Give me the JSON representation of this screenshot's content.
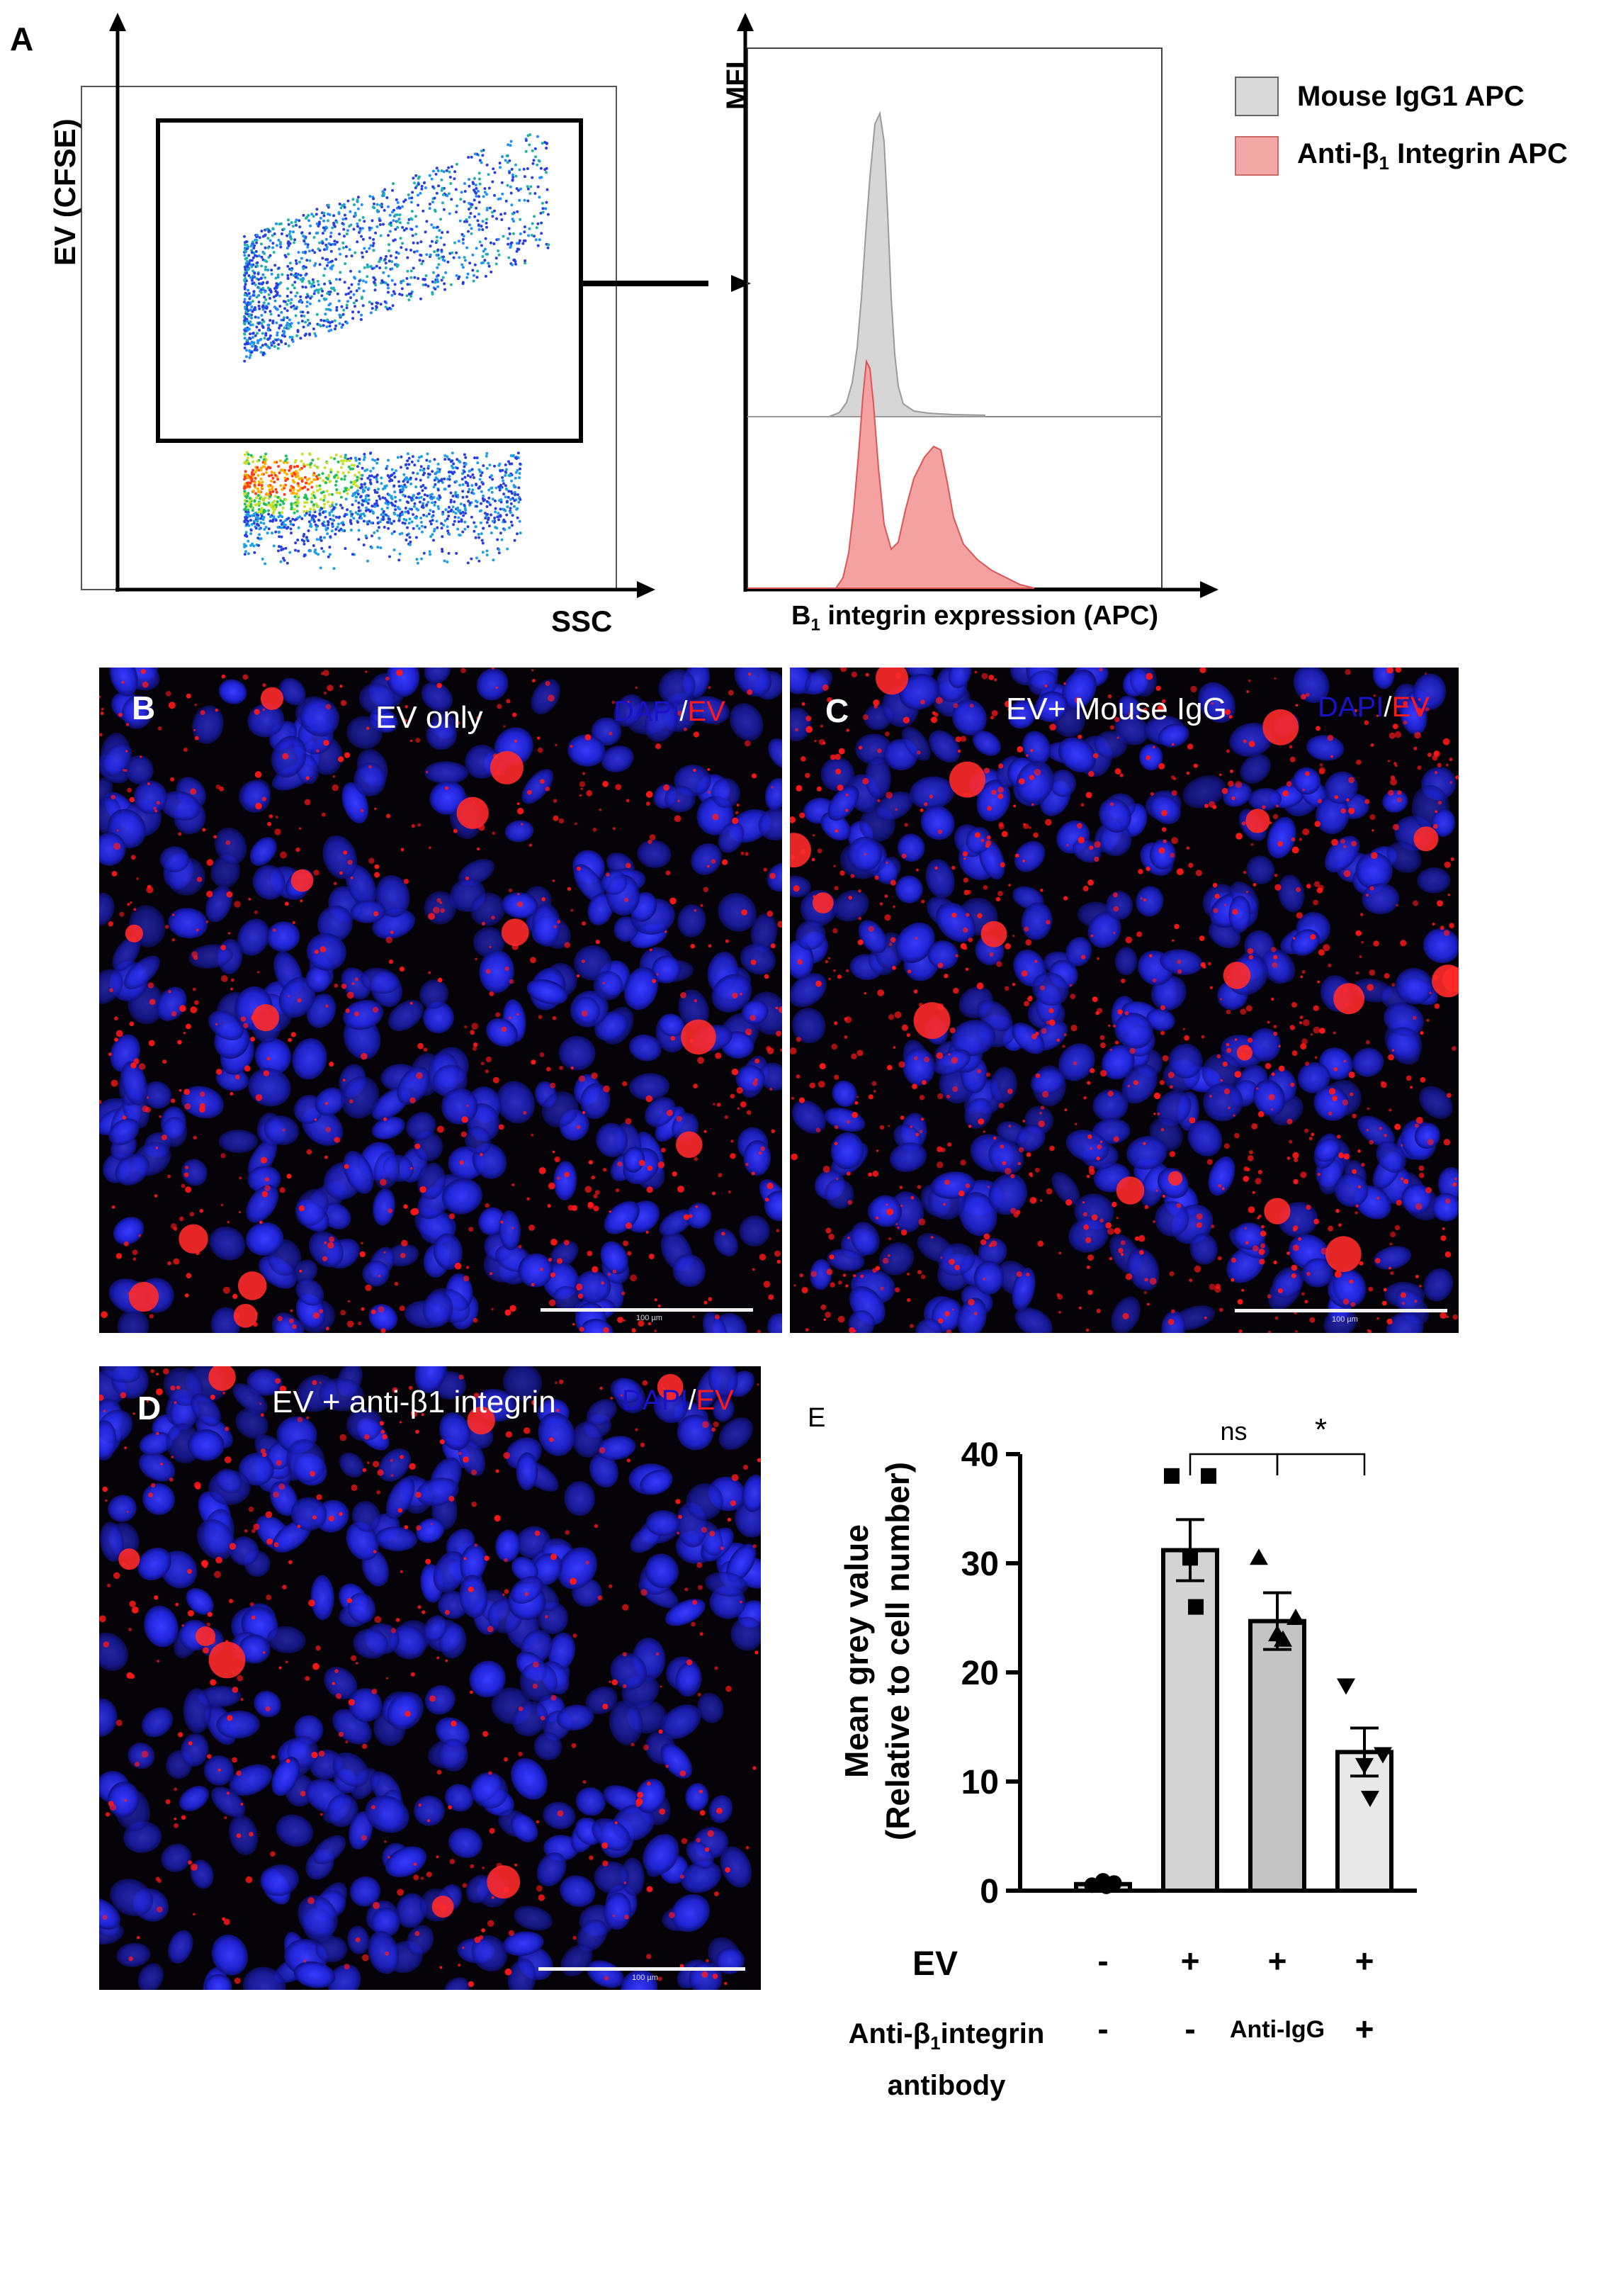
{
  "panelA": {
    "letter": "A",
    "flow_ylabel": "EV (CFSE)",
    "flow_xlabel": "SSC",
    "hist_ylabel": "MFI",
    "hist_xlabel_pre": "B",
    "hist_xlabel_sub": "1",
    "hist_xlabel_post": " integrin expression (APC)",
    "legend": [
      {
        "label": "Mouse IgG1 APC",
        "color": "#d9d9d9",
        "pre": "Mouse IgG1 APC",
        "sub": "",
        "post": ""
      },
      {
        "label": "Anti-β1 Integrin APC",
        "color": "#f4a7a7",
        "pre": "Anti-β",
        "sub": "1",
        "post": " Integrin APC"
      }
    ]
  },
  "panelB": {
    "letter": "B",
    "caption": "EV only",
    "stain_dapi": "DAPI",
    "stain_slash": "/",
    "stain_ev": "EV",
    "scale": "100 µm"
  },
  "panelC": {
    "letter": "C",
    "caption": "EV+ Mouse IgG",
    "stain_dapi": "DAPI",
    "stain_slash": "/",
    "stain_ev": "EV",
    "scale": "100 µm"
  },
  "panelD": {
    "letter": "D",
    "caption": "EV + anti-β1 integrin",
    "stain_dapi": "DAPI",
    "stain_slash": "/",
    "stain_ev": "EV",
    "scale": "100 µm"
  },
  "panelE": {
    "letter": "E",
    "ylabel_line1": "Mean grey value",
    "ylabel_line2": "(Relative to cell number)",
    "sig_ns": "ns",
    "sig_star": "*",
    "row1_label": "EV",
    "row1_values": [
      "-",
      "+",
      "+",
      "+"
    ],
    "row2_label_pre": "Anti-β",
    "row2_label_sub": "1",
    "row2_label_post": "integrin",
    "row2_label_line2": "antibody",
    "row2_values": [
      "-",
      "-",
      "Anti-IgG",
      "+"
    ]
  },
  "chart_data": {
    "type": "bar",
    "categories": [
      "EV- / Ab-",
      "EV+ / Ab-",
      "EV+ / Anti-IgG",
      "EV+ / Ab+"
    ],
    "values": [
      0.6,
      31.2,
      24.7,
      12.7
    ],
    "errors": [
      0.2,
      2.8,
      2.6,
      2.2
    ],
    "points": [
      [
        0.5,
        0.7,
        0.9,
        0.4
      ],
      [
        38.0,
        38.0,
        30.5,
        26.0
      ],
      [
        30.5,
        25.0,
        23.5,
        23.0
      ],
      [
        18.8,
        12.5,
        11.5,
        8.5
      ]
    ],
    "markers": [
      "circle",
      "square",
      "triangle-up",
      "triangle-down"
    ],
    "bar_colors": [
      "#d3d3d3",
      "#d3d3d3",
      "#c4c4c4",
      "#e8e8e8"
    ],
    "ylabel": "Mean grey value (Relative to cell number)",
    "ylim": [
      0,
      40
    ],
    "yticks": [
      0,
      10,
      20,
      30,
      40
    ],
    "significance": [
      {
        "from": 1,
        "to": 2,
        "label": "ns"
      },
      {
        "from": 2,
        "to": 3,
        "label": "*"
      }
    ]
  }
}
